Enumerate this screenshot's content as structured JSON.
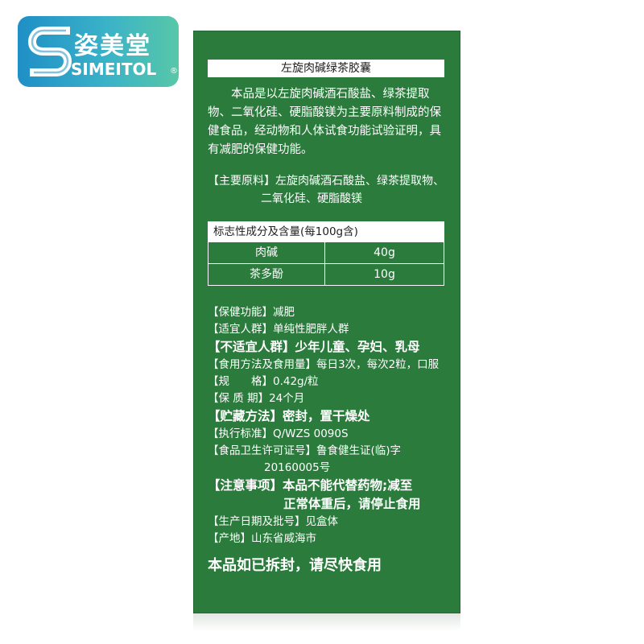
{
  "brand": {
    "name_cn": "姿美堂",
    "name_en": "SIMEITOL",
    "reg_mark": "®"
  },
  "product": {
    "title": "左旋肉碱绿茶胶囊",
    "intro": "本品是以左旋肉碱酒石酸盐、绿茶提取物、二氧化硅、硬脂酸镁为主要原料制成的保健食品，经动物和人体试食功能试验证明，具有减肥的保健功能。",
    "ingredients_line1": "【主要原料】左旋肉碱酒石酸盐、绿茶提取物、",
    "ingredients_line2": "二氧化硅、硬脂酸镁"
  },
  "table": {
    "header": "标志性成分及含量(每100g含)",
    "rows": [
      {
        "name": "肉碱",
        "value": "40g"
      },
      {
        "name": "茶多酚",
        "value": "10g"
      }
    ]
  },
  "specs": {
    "function": "【保健功能】减肥",
    "suitable": "【适宜人群】单纯性肥胖人群",
    "unsuitable": "【不适宜人群】少年儿童、孕妇、乳母",
    "usage": "【食用方法及食用量】每日3次，每次2粒，口服",
    "size": "【规　　格】0.42g/粒",
    "shelf_life": "【保 质 期】24个月",
    "storage": "【贮藏方法】密封，置干燥处",
    "standard": "【执行标准】Q/WZS 0090S",
    "license_line1": "【食品卫生许可证号】鲁食健生证(临)字",
    "license_line2": "20160005号",
    "notice_line1": "【注意事项】本品不能代替药物;减至",
    "notice_line2": "正常体重后，请停止食用",
    "batch": "【生产日期及批号】见盒体",
    "origin": "【产地】山东省威海市"
  },
  "footer": "本品如已拆封，请尽快食用",
  "colors": {
    "box_green": "#2a7b3c",
    "logo_blue": "#1f8fc6",
    "logo_teal": "#58c7a8"
  }
}
